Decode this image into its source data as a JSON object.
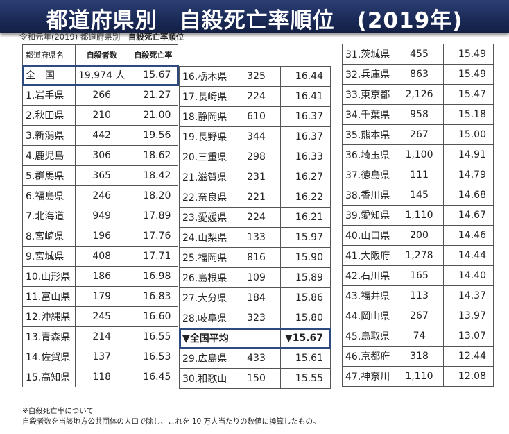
{
  "title": "都道府県別　自殺死亡率順位　(2019年)",
  "subtitle_prefix": "令和元年(2019) 都道府県別　",
  "subtitle_bold": "自殺死亡率順位",
  "headers": [
    "都道府県名",
    "自殺者数",
    "自殺死亡率"
  ],
  "national": [
    "全　国",
    "19,974 人",
    "15.67"
  ],
  "national_average": [
    "▼全国平均",
    "",
    "▼15.67"
  ],
  "rows": [
    [
      "1.岩手県",
      "266",
      "21.27"
    ],
    [
      "2.秋田県",
      "210",
      "21.00"
    ],
    [
      "3.新潟県",
      "442",
      "19.56"
    ],
    [
      "4.鹿児島",
      "306",
      "18.62"
    ],
    [
      "5.群馬県",
      "365",
      "18.42"
    ],
    [
      "6.福島県",
      "246",
      "18.20"
    ],
    [
      "7.北海道",
      "949",
      "17.89"
    ],
    [
      "8.宮崎県",
      "196",
      "17.76"
    ],
    [
      "9.宮城県",
      "408",
      "17.71"
    ],
    [
      "10.山形県",
      "186",
      "16.98"
    ],
    [
      "11.富山県",
      "179",
      "16.83"
    ],
    [
      "12.沖縄県",
      "245",
      "16.60"
    ],
    [
      "13.青森県",
      "214",
      "16.55"
    ],
    [
      "14.佐賀県",
      "137",
      "16.53"
    ],
    [
      "15.高知県",
      "118",
      "16.45"
    ],
    [
      "16.栃木県",
      "325",
      "16.44"
    ],
    [
      "17.長崎県",
      "224",
      "16.41"
    ],
    [
      "18.静岡県",
      "610",
      "16.37"
    ],
    [
      "19.長野県",
      "344",
      "16.37"
    ],
    [
      "20.三重県",
      "298",
      "16.33"
    ],
    [
      "21.滋賀県",
      "231",
      "16.27"
    ],
    [
      "22.奈良県",
      "221",
      "16.22"
    ],
    [
      "23.愛媛県",
      "224",
      "16.21"
    ],
    [
      "24.山梨県",
      "133",
      "15.97"
    ],
    [
      "25.福岡県",
      "816",
      "15.90"
    ],
    [
      "26.島根県",
      "109",
      "15.89"
    ],
    [
      "27.大分県",
      "184",
      "15.86"
    ],
    [
      "28.岐阜県",
      "323",
      "15.80"
    ],
    [
      "29.広島県",
      "433",
      "15.61"
    ],
    [
      "30.和歌山",
      "150",
      "15.55"
    ],
    [
      "31.茨城県",
      "455",
      "15.49"
    ],
    [
      "32.兵庫県",
      "863",
      "15.49"
    ],
    [
      "33.東京都",
      "2,126",
      "15.47"
    ],
    [
      "34.千葉県",
      "958",
      "15.18"
    ],
    [
      "35.熊本県",
      "267",
      "15.00"
    ],
    [
      "36.埼玉県",
      "1,100",
      "14.91"
    ],
    [
      "37.徳島県",
      "111",
      "14.79"
    ],
    [
      "38.香川県",
      "145",
      "14.68"
    ],
    [
      "39.愛知県",
      "1,110",
      "14.67"
    ],
    [
      "40.山口県",
      "200",
      "14.46"
    ],
    [
      "41.大阪府",
      "1,278",
      "14.44"
    ],
    [
      "42.石川県",
      "165",
      "14.40"
    ],
    [
      "43.福井県",
      "113",
      "14.37"
    ],
    [
      "44.岡山県",
      "267",
      "13.97"
    ],
    [
      "45.鳥取県",
      "74",
      "13.07"
    ],
    [
      "46.京都府",
      "318",
      "12.44"
    ],
    [
      "47.神奈川",
      "1,110",
      "12.08"
    ]
  ],
  "note_line1": "※自殺死亡率について",
  "note_line2": "自殺者数を当該地方公共団体の人口で除し、これを 10 万人当たりの数値に換算したもの。",
  "highlight_color": "#2e4a7f",
  "banner_color": "#1a2a57"
}
